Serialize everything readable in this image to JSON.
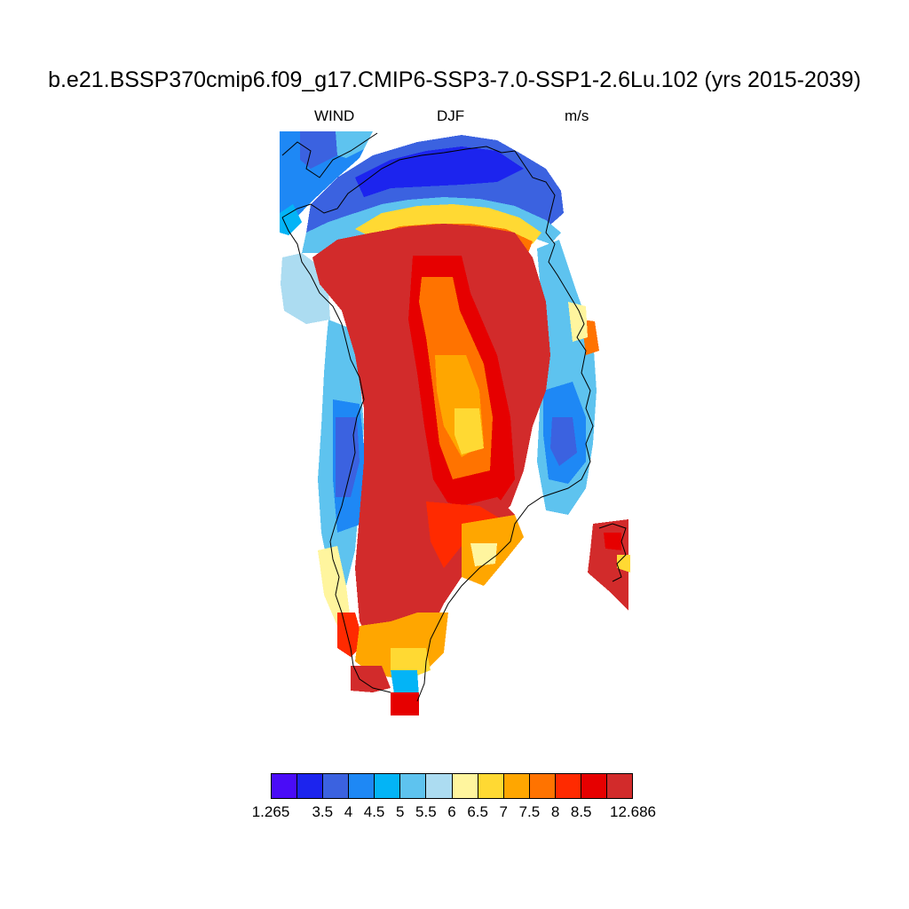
{
  "title": "b.e21.BSSP370cmip6.f09_g17.CMIP6-SSP3-7.0-SSP1-2.6Lu.102 (yrs 2015-2039)",
  "subtitle": {
    "variable": "WIND",
    "season": "DJF",
    "units": "m/s"
  },
  "colorbar": {
    "colors": [
      "#4a0cf7",
      "#1c24ee",
      "#3b62e0",
      "#1e88f5",
      "#03b4f6",
      "#5ec3ef",
      "#acdcf1",
      "#fff59e",
      "#ffd933",
      "#ffa600",
      "#ff7300",
      "#ff2a00",
      "#e60000",
      "#d22b2b"
    ],
    "labels": [
      "1.265",
      "3.5",
      "4",
      "4.5",
      "5",
      "5.5",
      "6",
      "6.5",
      "7",
      "7.5",
      "8",
      "8.5",
      "12.686"
    ]
  }
}
